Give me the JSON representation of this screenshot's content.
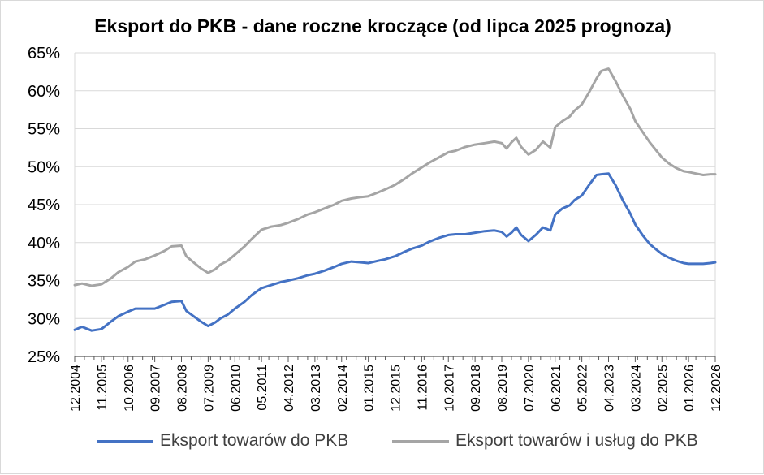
{
  "chart_data": {
    "type": "line",
    "title": "Eksport do PKB - dane roczne kroczące (od lipca 2025 prognoza)",
    "xlabel": "",
    "ylabel": "",
    "ylim": [
      25,
      65
    ],
    "ytick_step": 5,
    "ytick_labels": [
      "25%",
      "30%",
      "35%",
      "40%",
      "45%",
      "50%",
      "55%",
      "60%",
      "65%"
    ],
    "grid": true,
    "legend_position": "bottom",
    "x_ticks": [
      "12.2004",
      "11.2005",
      "10.2006",
      "09.2007",
      "08.2008",
      "07.2009",
      "06.2010",
      "05.2011",
      "04.2012",
      "03.2013",
      "02.2014",
      "01.2015",
      "12.2015",
      "11.2016",
      "10.2017",
      "09.2018",
      "08.2019",
      "07.2020",
      "06.2021",
      "05.2022",
      "04.2023",
      "03.2024",
      "02.2025",
      "01.2026",
      "12.2026"
    ],
    "series": [
      {
        "name": "Eksport towarów do PKB",
        "color": "#4472c4",
        "points": [
          [
            "12.2004",
            28.5
          ],
          [
            "03.2005",
            28.9
          ],
          [
            "07.2005",
            28.4
          ],
          [
            "11.2005",
            28.6
          ],
          [
            "03.2006",
            29.6
          ],
          [
            "06.2006",
            30.3
          ],
          [
            "10.2006",
            30.9
          ],
          [
            "01.2007",
            31.3
          ],
          [
            "05.2007",
            31.3
          ],
          [
            "09.2007",
            31.3
          ],
          [
            "01.2008",
            31.8
          ],
          [
            "04.2008",
            32.2
          ],
          [
            "08.2008",
            32.3
          ],
          [
            "10.2008",
            31.0
          ],
          [
            "01.2009",
            30.3
          ],
          [
            "04.2009",
            29.6
          ],
          [
            "07.2009",
            29.0
          ],
          [
            "10.2009",
            29.5
          ],
          [
            "12.2009",
            30.0
          ],
          [
            "03.2010",
            30.5
          ],
          [
            "06.2010",
            31.3
          ],
          [
            "10.2010",
            32.2
          ],
          [
            "01.2011",
            33.1
          ],
          [
            "05.2011",
            34.0
          ],
          [
            "09.2011",
            34.4
          ],
          [
            "01.2012",
            34.8
          ],
          [
            "04.2012",
            35.0
          ],
          [
            "08.2012",
            35.3
          ],
          [
            "12.2012",
            35.7
          ],
          [
            "03.2013",
            35.9
          ],
          [
            "07.2013",
            36.3
          ],
          [
            "11.2013",
            36.8
          ],
          [
            "02.2014",
            37.2
          ],
          [
            "06.2014",
            37.5
          ],
          [
            "10.2014",
            37.4
          ],
          [
            "01.2015",
            37.3
          ],
          [
            "05.2015",
            37.6
          ],
          [
            "08.2015",
            37.8
          ],
          [
            "12.2015",
            38.2
          ],
          [
            "04.2016",
            38.8
          ],
          [
            "07.2016",
            39.2
          ],
          [
            "11.2016",
            39.6
          ],
          [
            "02.2017",
            40.1
          ],
          [
            "06.2017",
            40.6
          ],
          [
            "10.2017",
            41.0
          ],
          [
            "01.2018",
            41.1
          ],
          [
            "05.2018",
            41.1
          ],
          [
            "09.2018",
            41.3
          ],
          [
            "01.2019",
            41.5
          ],
          [
            "05.2019",
            41.6
          ],
          [
            "08.2019",
            41.4
          ],
          [
            "10.2019",
            40.8
          ],
          [
            "12.2019",
            41.3
          ],
          [
            "02.2020",
            42.0
          ],
          [
            "04.2020",
            41.0
          ],
          [
            "07.2020",
            40.2
          ],
          [
            "10.2020",
            41.0
          ],
          [
            "01.2021",
            42.0
          ],
          [
            "04.2021",
            41.6
          ],
          [
            "06.2021",
            43.7
          ],
          [
            "09.2021",
            44.5
          ],
          [
            "12.2021",
            44.9
          ],
          [
            "02.2022",
            45.6
          ],
          [
            "05.2022",
            46.2
          ],
          [
            "08.2022",
            47.6
          ],
          [
            "11.2022",
            48.9
          ],
          [
            "01.2023",
            49.0
          ],
          [
            "04.2023",
            49.1
          ],
          [
            "07.2023",
            47.5
          ],
          [
            "10.2023",
            45.5
          ],
          [
            "01.2024",
            43.8
          ],
          [
            "03.2024",
            42.4
          ],
          [
            "06.2024",
            41.0
          ],
          [
            "09.2024",
            39.8
          ],
          [
            "12.2024",
            39.0
          ],
          [
            "02.2025",
            38.5
          ],
          [
            "05.2025",
            38.0
          ],
          [
            "08.2025",
            37.6
          ],
          [
            "11.2025",
            37.3
          ],
          [
            "01.2026",
            37.2
          ],
          [
            "04.2026",
            37.2
          ],
          [
            "07.2026",
            37.2
          ],
          [
            "10.2026",
            37.3
          ],
          [
            "12.2026",
            37.4
          ]
        ]
      },
      {
        "name": "Eksport towarów i usług do PKB",
        "color": "#a5a5a5",
        "points": [
          [
            "12.2004",
            34.4
          ],
          [
            "03.2005",
            34.6
          ],
          [
            "07.2005",
            34.3
          ],
          [
            "11.2005",
            34.5
          ],
          [
            "03.2006",
            35.3
          ],
          [
            "06.2006",
            36.1
          ],
          [
            "10.2006",
            36.8
          ],
          [
            "01.2007",
            37.5
          ],
          [
            "05.2007",
            37.8
          ],
          [
            "09.2007",
            38.3
          ],
          [
            "01.2008",
            38.9
          ],
          [
            "04.2008",
            39.5
          ],
          [
            "08.2008",
            39.6
          ],
          [
            "10.2008",
            38.2
          ],
          [
            "01.2009",
            37.4
          ],
          [
            "04.2009",
            36.6
          ],
          [
            "07.2009",
            36.0
          ],
          [
            "10.2009",
            36.5
          ],
          [
            "12.2009",
            37.1
          ],
          [
            "03.2010",
            37.6
          ],
          [
            "06.2010",
            38.4
          ],
          [
            "10.2010",
            39.5
          ],
          [
            "01.2011",
            40.5
          ],
          [
            "05.2011",
            41.7
          ],
          [
            "09.2011",
            42.1
          ],
          [
            "01.2012",
            42.3
          ],
          [
            "04.2012",
            42.6
          ],
          [
            "08.2012",
            43.1
          ],
          [
            "12.2012",
            43.7
          ],
          [
            "03.2013",
            44.0
          ],
          [
            "07.2013",
            44.5
          ],
          [
            "11.2013",
            45.0
          ],
          [
            "02.2014",
            45.5
          ],
          [
            "06.2014",
            45.8
          ],
          [
            "10.2014",
            46.0
          ],
          [
            "01.2015",
            46.1
          ],
          [
            "05.2015",
            46.6
          ],
          [
            "08.2015",
            47.0
          ],
          [
            "12.2015",
            47.6
          ],
          [
            "04.2016",
            48.4
          ],
          [
            "07.2016",
            49.1
          ],
          [
            "11.2016",
            49.9
          ],
          [
            "02.2017",
            50.5
          ],
          [
            "06.2017",
            51.2
          ],
          [
            "10.2017",
            51.9
          ],
          [
            "01.2018",
            52.1
          ],
          [
            "05.2018",
            52.6
          ],
          [
            "09.2018",
            52.9
          ],
          [
            "01.2019",
            53.1
          ],
          [
            "05.2019",
            53.3
          ],
          [
            "08.2019",
            53.1
          ],
          [
            "10.2019",
            52.4
          ],
          [
            "12.2019",
            53.2
          ],
          [
            "02.2020",
            53.8
          ],
          [
            "04.2020",
            52.6
          ],
          [
            "07.2020",
            51.6
          ],
          [
            "10.2020",
            52.2
          ],
          [
            "01.2021",
            53.3
          ],
          [
            "04.2021",
            52.5
          ],
          [
            "06.2021",
            55.2
          ],
          [
            "09.2021",
            56.0
          ],
          [
            "12.2021",
            56.6
          ],
          [
            "02.2022",
            57.4
          ],
          [
            "05.2022",
            58.2
          ],
          [
            "08.2022",
            59.8
          ],
          [
            "11.2022",
            61.6
          ],
          [
            "01.2023",
            62.6
          ],
          [
            "04.2023",
            62.9
          ],
          [
            "07.2023",
            61.2
          ],
          [
            "10.2023",
            59.3
          ],
          [
            "01.2024",
            57.6
          ],
          [
            "03.2024",
            56.0
          ],
          [
            "06.2024",
            54.6
          ],
          [
            "09.2024",
            53.2
          ],
          [
            "12.2024",
            52.0
          ],
          [
            "02.2025",
            51.2
          ],
          [
            "05.2025",
            50.4
          ],
          [
            "08.2025",
            49.8
          ],
          [
            "11.2025",
            49.4
          ],
          [
            "01.2026",
            49.3
          ],
          [
            "04.2026",
            49.1
          ],
          [
            "07.2026",
            48.9
          ],
          [
            "10.2026",
            49.0
          ],
          [
            "12.2026",
            49.0
          ]
        ]
      }
    ]
  }
}
